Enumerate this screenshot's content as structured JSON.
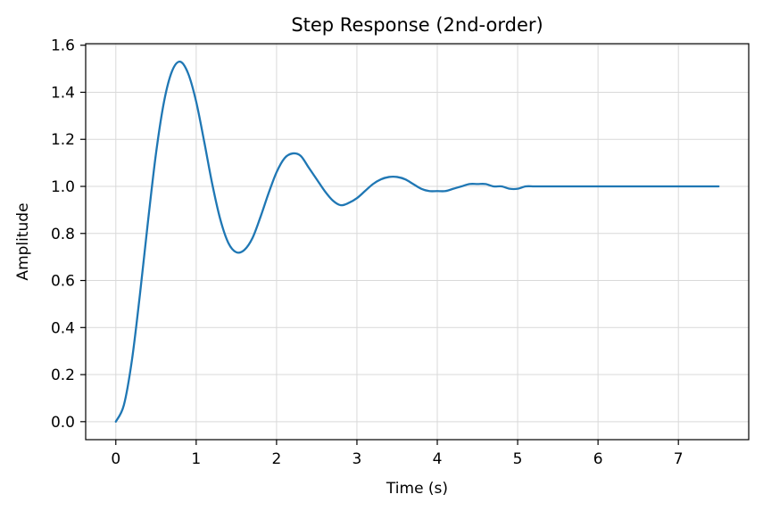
{
  "chart_data": {
    "type": "line",
    "title": "Step Response (2nd-order)",
    "xlabel": "Time (s)",
    "ylabel": "Amplitude",
    "xlim": [
      -0.375,
      7.875
    ],
    "ylim": [
      -0.0765,
      1.6065
    ],
    "xticks": [
      0,
      1,
      2,
      3,
      4,
      5,
      6,
      7
    ],
    "xtick_labels": [
      "0",
      "1",
      "2",
      "3",
      "4",
      "5",
      "6",
      "7"
    ],
    "yticks": [
      0.0,
      0.2,
      0.4,
      0.6,
      0.8,
      1.0,
      1.2,
      1.4,
      1.6
    ],
    "ytick_labels": [
      "0.0",
      "0.2",
      "0.4",
      "0.6",
      "0.8",
      "1.0",
      "1.2",
      "1.4",
      "1.6"
    ],
    "grid": true,
    "colors": {
      "line": "#1f77b4",
      "grid": "#d9d9d9",
      "axes": "#000000"
    },
    "series": [
      {
        "x": [
          0,
          0.1,
          0.2,
          0.3,
          0.4,
          0.5,
          0.6,
          0.7,
          0.8,
          0.9,
          1.0,
          1.1,
          1.2,
          1.3,
          1.4,
          1.5,
          1.6,
          1.7,
          1.8,
          1.9,
          2.0,
          2.1,
          2.2,
          2.3,
          2.4,
          2.5,
          2.6,
          2.7,
          2.8,
          2.9,
          3.0,
          3.1,
          3.2,
          3.3,
          3.4,
          3.5,
          3.6,
          3.7,
          3.8,
          3.9,
          4.0,
          4.1,
          4.2,
          4.3,
          4.4,
          4.5,
          4.6,
          4.7,
          4.8,
          4.9,
          5.0,
          5.1,
          5.2,
          5.3,
          5.4,
          5.5,
          5.6,
          5.7,
          5.8,
          5.9,
          6.0,
          6.1,
          6.2,
          6.3,
          6.4,
          6.5,
          6.6,
          6.7,
          6.8,
          6.9,
          7.0,
          7.1,
          7.2,
          7.3,
          7.4,
          7.5
        ],
        "y": [
          0.0,
          0.07,
          0.26,
          0.54,
          0.85,
          1.14,
          1.36,
          1.49,
          1.53,
          1.48,
          1.36,
          1.19,
          1.01,
          0.86,
          0.76,
          0.72,
          0.73,
          0.78,
          0.87,
          0.97,
          1.06,
          1.12,
          1.14,
          1.13,
          1.08,
          1.03,
          0.98,
          0.94,
          0.92,
          0.93,
          0.95,
          0.98,
          1.01,
          1.03,
          1.04,
          1.04,
          1.03,
          1.01,
          0.99,
          0.98,
          0.98,
          0.98,
          0.99,
          1.0,
          1.01,
          1.01,
          1.01,
          1.0,
          1.0,
          0.99,
          0.99,
          1.0,
          1.0,
          1.0,
          1.0,
          1.0,
          1.0,
          1.0,
          1.0,
          1.0,
          1.0,
          1.0,
          1.0,
          1.0,
          1.0,
          1.0,
          1.0,
          1.0,
          1.0,
          1.0,
          1.0,
          1.0,
          1.0,
          1.0,
          1.0,
          1.0
        ]
      }
    ]
  }
}
